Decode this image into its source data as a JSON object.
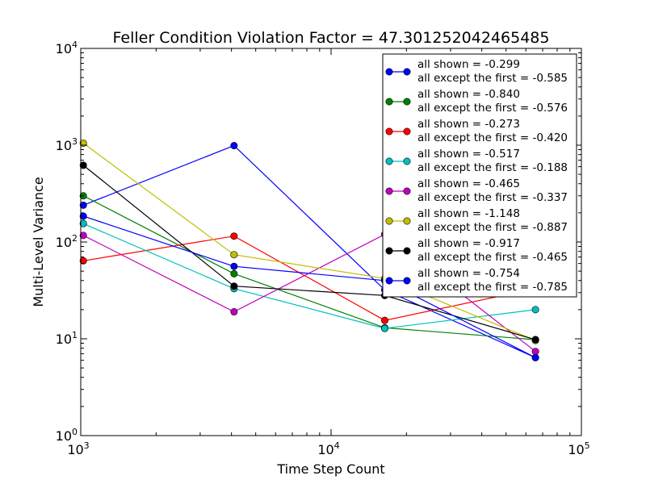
{
  "chart_data": {
    "type": "line",
    "title": "Feller Condition Violation Factor = 47.301252042465485",
    "xlabel": "Time Step Count",
    "ylabel": "Multi-Level Variance",
    "xscale": "log",
    "yscale": "log",
    "xlim": [
      1000,
      100000
    ],
    "ylim": [
      1,
      10000
    ],
    "x_ticks": [
      {
        "base": "10",
        "exp": "3"
      },
      {
        "base": "10",
        "exp": "4"
      },
      {
        "base": "10",
        "exp": "5"
      }
    ],
    "y_ticks": [
      {
        "base": "10",
        "exp": "0"
      },
      {
        "base": "10",
        "exp": "1"
      },
      {
        "base": "10",
        "exp": "2"
      },
      {
        "base": "10",
        "exp": "3"
      },
      {
        "base": "10",
        "exp": "4"
      }
    ],
    "x": [
      1024,
      4096,
      16384,
      65536
    ],
    "legend_position": "upper right",
    "grid": false,
    "series": [
      {
        "label_line1": "all shown = -0.299",
        "label_line2": "all except the first = -0.585",
        "color": "#0000ff",
        "values": [
          240,
          990,
          32,
          6.4
        ]
      },
      {
        "label_line1": "all shown = -0.840",
        "label_line2": "all except the first = -0.576",
        "color": "#007f00",
        "values": [
          300,
          47,
          13,
          9.8
        ]
      },
      {
        "label_line1": "all shown = -0.273",
        "label_line2": "all except the first = -0.420",
        "color": "#ff0000",
        "values": [
          64,
          115,
          15.5,
          33
        ]
      },
      {
        "label_line1": "all shown = -0.517",
        "label_line2": "all except the first = -0.188",
        "color": "#00bfbf",
        "values": [
          155,
          33,
          12.8,
          20
        ]
      },
      {
        "label_line1": "all shown = -0.465",
        "label_line2": "all except the first = -0.337",
        "color": "#bf00bf",
        "values": [
          117,
          19,
          120,
          7.4
        ]
      },
      {
        "label_line1": "all shown = -1.148",
        "label_line2": "all except the first = -0.887",
        "color": "#bfbf00",
        "values": [
          1050,
          74,
          42,
          9.6
        ]
      },
      {
        "label_line1": "all shown = -0.917",
        "label_line2": "all except the first = -0.465",
        "color": "#000000",
        "values": [
          620,
          35,
          28,
          9.8
        ]
      },
      {
        "label_line1": "all shown = -0.754",
        "label_line2": "all except the first = -0.785",
        "color": "#0000ff",
        "values": [
          185,
          56,
          40,
          6.4
        ]
      }
    ]
  }
}
